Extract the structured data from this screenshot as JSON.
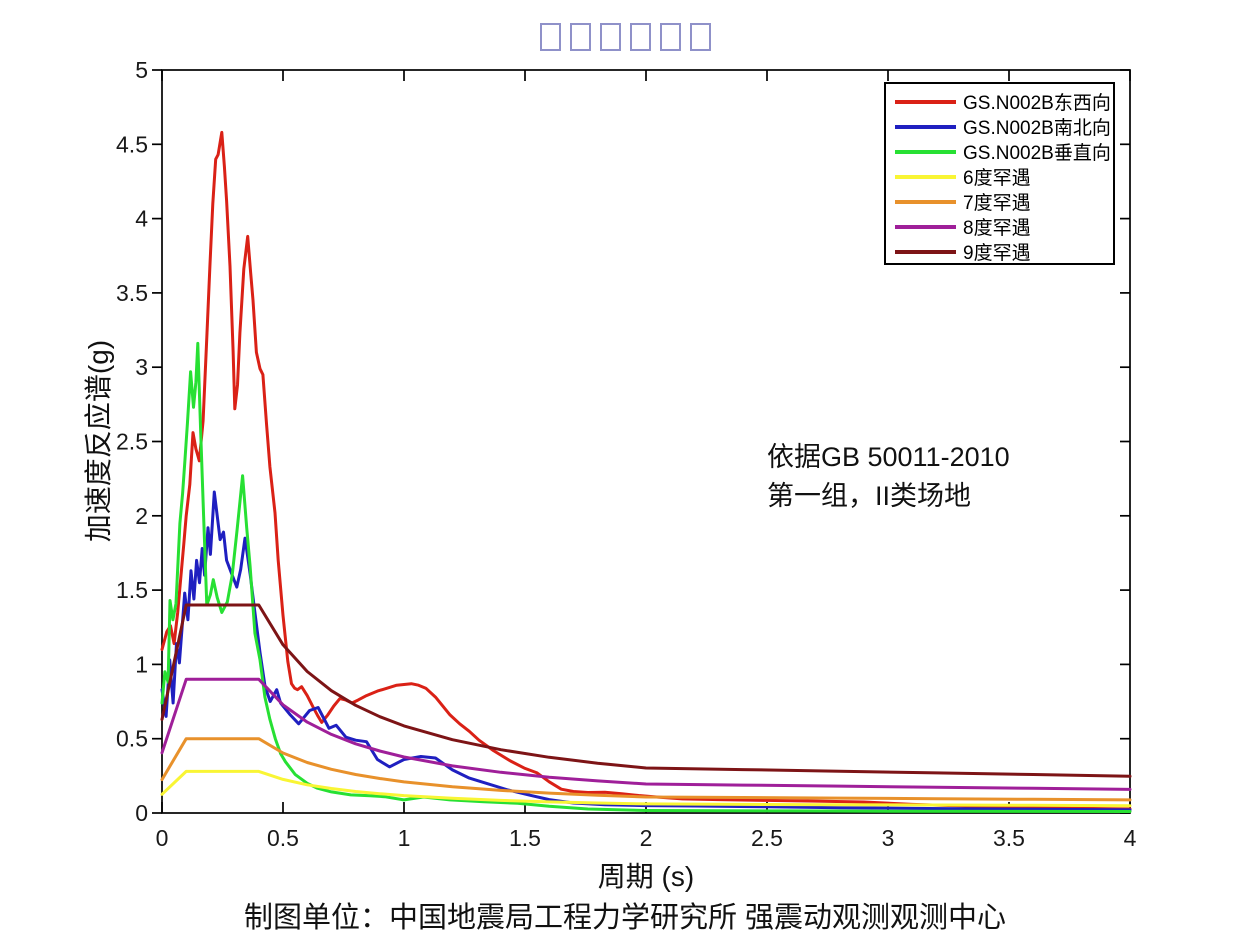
{
  "title": {
    "missing_glyph_count": 6,
    "box_color": "#8f91c9"
  },
  "annotation": {
    "lines": [
      "依据GB 50011-2010",
      "第一组，II类场地"
    ]
  },
  "caption": "制图单位：中国地震局工程力学研究所 强震动观测观测中心",
  "chart_data": {
    "type": "line",
    "title": "□□□□□□",
    "xlabel": "周期 (s)",
    "ylabel": "加速度反应谱(g)",
    "xlim": [
      0,
      4
    ],
    "ylim": [
      0,
      5
    ],
    "grid": false,
    "legend_position": "top-right",
    "xticks": [
      0,
      0.5,
      1,
      1.5,
      2,
      2.5,
      3,
      3.5,
      4
    ],
    "xtick_labels": [
      "0",
      "0.5",
      "1",
      "1.5",
      "2",
      "2.5",
      "3",
      "3.5",
      "4"
    ],
    "yticks": [
      0,
      0.5,
      1,
      1.5,
      2,
      2.5,
      3,
      3.5,
      4,
      4.5,
      5
    ],
    "ytick_labels": [
      "0",
      "0.5",
      "1",
      "1.5",
      "2",
      "2.5",
      "3",
      "3.5",
      "4",
      "4.5",
      "5"
    ],
    "series": [
      {
        "name": "GS.N002B东西向",
        "color": "#da2116",
        "points": [
          [
            0,
            1.1
          ],
          [
            0.02,
            1.22
          ],
          [
            0.035,
            1.26
          ],
          [
            0.05,
            1.14
          ],
          [
            0.065,
            1.35
          ],
          [
            0.075,
            1.54
          ],
          [
            0.09,
            1.81
          ],
          [
            0.1,
            2.0
          ],
          [
            0.115,
            2.21
          ],
          [
            0.128,
            2.56
          ],
          [
            0.14,
            2.45
          ],
          [
            0.154,
            2.37
          ],
          [
            0.17,
            2.64
          ],
          [
            0.185,
            3.2
          ],
          [
            0.198,
            3.68
          ],
          [
            0.21,
            4.1
          ],
          [
            0.222,
            4.4
          ],
          [
            0.232,
            4.43
          ],
          [
            0.247,
            4.58
          ],
          [
            0.258,
            4.35
          ],
          [
            0.267,
            4.12
          ],
          [
            0.281,
            3.68
          ],
          [
            0.294,
            3.11
          ],
          [
            0.301,
            2.72
          ],
          [
            0.312,
            2.88
          ],
          [
            0.322,
            3.23
          ],
          [
            0.338,
            3.66
          ],
          [
            0.354,
            3.88
          ],
          [
            0.366,
            3.64
          ],
          [
            0.376,
            3.45
          ],
          [
            0.39,
            3.1
          ],
          [
            0.405,
            2.99
          ],
          [
            0.417,
            2.95
          ],
          [
            0.432,
            2.62
          ],
          [
            0.446,
            2.33
          ],
          [
            0.467,
            2.02
          ],
          [
            0.48,
            1.7
          ],
          [
            0.5,
            1.33
          ],
          [
            0.52,
            1.02
          ],
          [
            0.535,
            0.87
          ],
          [
            0.548,
            0.84
          ],
          [
            0.56,
            0.83
          ],
          [
            0.577,
            0.85
          ],
          [
            0.6,
            0.79
          ],
          [
            0.625,
            0.71
          ],
          [
            0.645,
            0.65
          ],
          [
            0.66,
            0.61
          ],
          [
            0.685,
            0.66
          ],
          [
            0.71,
            0.72
          ],
          [
            0.735,
            0.77
          ],
          [
            0.76,
            0.76
          ],
          [
            0.785,
            0.74
          ],
          [
            0.81,
            0.76
          ],
          [
            0.845,
            0.79
          ],
          [
            0.89,
            0.82
          ],
          [
            0.93,
            0.84
          ],
          [
            0.97,
            0.86
          ],
          [
            1.03,
            0.87
          ],
          [
            1.06,
            0.86
          ],
          [
            1.09,
            0.84
          ],
          [
            1.13,
            0.78
          ],
          [
            1.19,
            0.66
          ],
          [
            1.23,
            0.6
          ],
          [
            1.27,
            0.55
          ],
          [
            1.31,
            0.49
          ],
          [
            1.37,
            0.42
          ],
          [
            1.44,
            0.35
          ],
          [
            1.5,
            0.3
          ],
          [
            1.55,
            0.27
          ],
          [
            1.6,
            0.21
          ],
          [
            1.65,
            0.16
          ],
          [
            1.7,
            0.145
          ],
          [
            1.76,
            0.138
          ],
          [
            1.83,
            0.14
          ],
          [
            1.9,
            0.13
          ],
          [
            1.97,
            0.118
          ],
          [
            2.05,
            0.107
          ],
          [
            2.15,
            0.095
          ],
          [
            2.3,
            0.09
          ],
          [
            2.5,
            0.085
          ],
          [
            2.7,
            0.08
          ],
          [
            2.9,
            0.074
          ],
          [
            3.1,
            0.058
          ],
          [
            3.3,
            0.048
          ],
          [
            3.5,
            0.04
          ],
          [
            3.7,
            0.034
          ],
          [
            3.85,
            0.03
          ],
          [
            4.0,
            0.027
          ]
        ]
      },
      {
        "name": "GS.N002B南北向",
        "color": "#1f1fc0",
        "points": [
          [
            0,
            0.83
          ],
          [
            0.017,
            0.65
          ],
          [
            0.032,
            1.03
          ],
          [
            0.046,
            0.74
          ],
          [
            0.06,
            1.14
          ],
          [
            0.072,
            1.01
          ],
          [
            0.094,
            1.48
          ],
          [
            0.107,
            1.3
          ],
          [
            0.12,
            1.63
          ],
          [
            0.132,
            1.44
          ],
          [
            0.143,
            1.7
          ],
          [
            0.155,
            1.55
          ],
          [
            0.166,
            1.78
          ],
          [
            0.176,
            1.6
          ],
          [
            0.19,
            1.92
          ],
          [
            0.2,
            1.74
          ],
          [
            0.216,
            2.16
          ],
          [
            0.229,
            1.99
          ],
          [
            0.24,
            1.84
          ],
          [
            0.254,
            1.89
          ],
          [
            0.267,
            1.7
          ],
          [
            0.288,
            1.61
          ],
          [
            0.309,
            1.52
          ],
          [
            0.325,
            1.64
          ],
          [
            0.343,
            1.85
          ],
          [
            0.364,
            1.61
          ],
          [
            0.384,
            1.35
          ],
          [
            0.405,
            1.08
          ],
          [
            0.426,
            0.85
          ],
          [
            0.447,
            0.75
          ],
          [
            0.474,
            0.83
          ],
          [
            0.49,
            0.74
          ],
          [
            0.53,
            0.66
          ],
          [
            0.565,
            0.6
          ],
          [
            0.61,
            0.69
          ],
          [
            0.645,
            0.71
          ],
          [
            0.69,
            0.57
          ],
          [
            0.72,
            0.59
          ],
          [
            0.76,
            0.51
          ],
          [
            0.8,
            0.49
          ],
          [
            0.845,
            0.48
          ],
          [
            0.89,
            0.36
          ],
          [
            0.94,
            0.31
          ],
          [
            1.0,
            0.36
          ],
          [
            1.07,
            0.38
          ],
          [
            1.13,
            0.37
          ],
          [
            1.2,
            0.29
          ],
          [
            1.27,
            0.235
          ],
          [
            1.34,
            0.2
          ],
          [
            1.43,
            0.155
          ],
          [
            1.52,
            0.12
          ],
          [
            1.6,
            0.09
          ],
          [
            1.7,
            0.067
          ],
          [
            1.83,
            0.056
          ],
          [
            2.0,
            0.05
          ],
          [
            2.2,
            0.047
          ],
          [
            2.5,
            0.042
          ],
          [
            2.8,
            0.036
          ],
          [
            3.1,
            0.031
          ],
          [
            3.5,
            0.026
          ],
          [
            4.0,
            0.021
          ]
        ]
      },
      {
        "name": "GS.N002B垂直向",
        "color": "#27e033",
        "points": [
          [
            0,
            0.74
          ],
          [
            0.012,
            0.95
          ],
          [
            0.025,
            0.88
          ],
          [
            0.033,
            1.43
          ],
          [
            0.045,
            1.3
          ],
          [
            0.058,
            1.41
          ],
          [
            0.074,
            1.95
          ],
          [
            0.085,
            2.15
          ],
          [
            0.095,
            2.38
          ],
          [
            0.105,
            2.62
          ],
          [
            0.118,
            2.97
          ],
          [
            0.13,
            2.73
          ],
          [
            0.14,
            2.9
          ],
          [
            0.148,
            3.16
          ],
          [
            0.16,
            2.56
          ],
          [
            0.172,
            2.0
          ],
          [
            0.185,
            1.4
          ],
          [
            0.2,
            1.47
          ],
          [
            0.212,
            1.57
          ],
          [
            0.228,
            1.45
          ],
          [
            0.247,
            1.35
          ],
          [
            0.27,
            1.42
          ],
          [
            0.29,
            1.6
          ],
          [
            0.31,
            1.9
          ],
          [
            0.333,
            2.27
          ],
          [
            0.35,
            1.92
          ],
          [
            0.364,
            1.66
          ],
          [
            0.384,
            1.21
          ],
          [
            0.405,
            1.03
          ],
          [
            0.425,
            0.78
          ],
          [
            0.446,
            0.63
          ],
          [
            0.468,
            0.5
          ],
          [
            0.49,
            0.4
          ],
          [
            0.51,
            0.345
          ],
          [
            0.55,
            0.26
          ],
          [
            0.6,
            0.2
          ],
          [
            0.64,
            0.168
          ],
          [
            0.7,
            0.142
          ],
          [
            0.78,
            0.122
          ],
          [
            0.86,
            0.116
          ],
          [
            0.92,
            0.11
          ],
          [
            1.0,
            0.088
          ],
          [
            1.08,
            0.108
          ],
          [
            1.19,
            0.088
          ],
          [
            1.33,
            0.076
          ],
          [
            1.47,
            0.065
          ],
          [
            1.6,
            0.045
          ],
          [
            1.76,
            0.027
          ],
          [
            2.0,
            0.017
          ],
          [
            2.3,
            0.015
          ],
          [
            2.6,
            0.014
          ],
          [
            3.0,
            0.012
          ],
          [
            3.5,
            0.011
          ],
          [
            4.0,
            0.01
          ]
        ]
      },
      {
        "name": "6度罕遇",
        "color": "#f9f534",
        "points": [
          [
            0,
            0.126
          ],
          [
            0.1,
            0.28
          ],
          [
            0.4,
            0.28
          ],
          [
            0.5,
            0.226
          ],
          [
            0.6,
            0.19
          ],
          [
            0.7,
            0.165
          ],
          [
            0.8,
            0.145
          ],
          [
            0.9,
            0.13
          ],
          [
            1,
            0.117
          ],
          [
            1.2,
            0.099
          ],
          [
            1.4,
            0.085
          ],
          [
            1.6,
            0.075
          ],
          [
            1.8,
            0.067
          ],
          [
            2,
            0.061
          ],
          [
            2.4,
            0.058
          ],
          [
            2.8,
            0.056
          ],
          [
            3.2,
            0.054
          ],
          [
            3.6,
            0.052
          ],
          [
            4,
            0.049
          ]
        ]
      },
      {
        "name": "7度罕遇",
        "color": "#e8912b",
        "points": [
          [
            0,
            0.225
          ],
          [
            0.1,
            0.5
          ],
          [
            0.4,
            0.5
          ],
          [
            0.5,
            0.404
          ],
          [
            0.6,
            0.34
          ],
          [
            0.7,
            0.294
          ],
          [
            0.8,
            0.259
          ],
          [
            0.9,
            0.232
          ],
          [
            1,
            0.209
          ],
          [
            1.2,
            0.176
          ],
          [
            1.4,
            0.152
          ],
          [
            1.6,
            0.134
          ],
          [
            1.8,
            0.12
          ],
          [
            2,
            0.108
          ],
          [
            2.4,
            0.104
          ],
          [
            2.8,
            0.1
          ],
          [
            3.2,
            0.096
          ],
          [
            3.6,
            0.092
          ],
          [
            4,
            0.088
          ]
        ]
      },
      {
        "name": "8度罕遇",
        "color": "#9f1f99",
        "points": [
          [
            0,
            0.405
          ],
          [
            0.1,
            0.9
          ],
          [
            0.4,
            0.9
          ],
          [
            0.5,
            0.728
          ],
          [
            0.6,
            0.612
          ],
          [
            0.7,
            0.529
          ],
          [
            0.8,
            0.466
          ],
          [
            0.9,
            0.417
          ],
          [
            1,
            0.377
          ],
          [
            1.2,
            0.317
          ],
          [
            1.4,
            0.274
          ],
          [
            1.6,
            0.241
          ],
          [
            1.8,
            0.216
          ],
          [
            2,
            0.195
          ],
          [
            2.4,
            0.188
          ],
          [
            2.8,
            0.181
          ],
          [
            3.2,
            0.173
          ],
          [
            3.6,
            0.166
          ],
          [
            4,
            0.159
          ]
        ]
      },
      {
        "name": "9度罕遇",
        "color": "#7d1416",
        "points": [
          [
            0,
            0.63
          ],
          [
            0.1,
            1.4
          ],
          [
            0.4,
            1.4
          ],
          [
            0.5,
            1.132
          ],
          [
            0.6,
            0.952
          ],
          [
            0.7,
            0.823
          ],
          [
            0.8,
            0.725
          ],
          [
            0.9,
            0.648
          ],
          [
            1,
            0.586
          ],
          [
            1.2,
            0.493
          ],
          [
            1.4,
            0.426
          ],
          [
            1.6,
            0.375
          ],
          [
            1.8,
            0.335
          ],
          [
            2,
            0.303
          ],
          [
            2.4,
            0.292
          ],
          [
            2.8,
            0.281
          ],
          [
            3.2,
            0.27
          ],
          [
            3.6,
            0.259
          ],
          [
            4,
            0.247
          ]
        ]
      }
    ]
  }
}
